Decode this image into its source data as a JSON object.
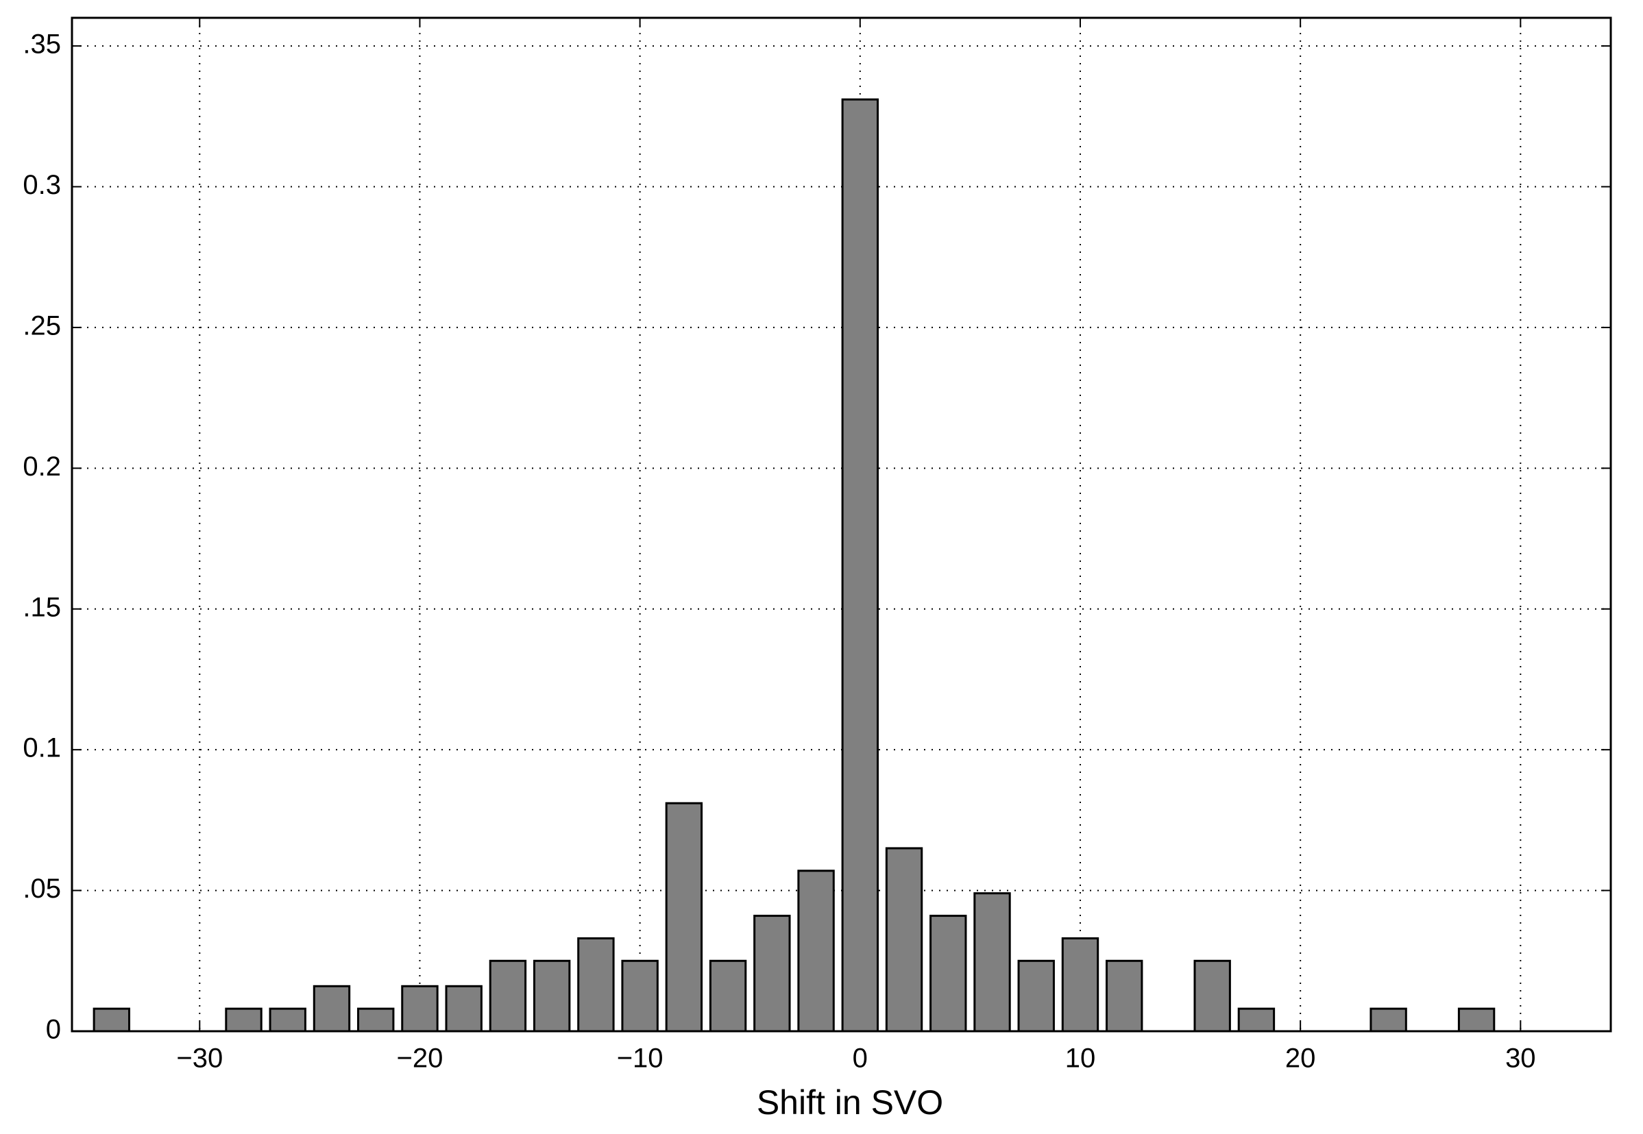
{
  "chart_data": {
    "type": "bar",
    "xlabel": "Shift in SVO",
    "x": [
      -34,
      -28,
      -26,
      -24,
      -22,
      -20,
      -18,
      -16,
      -14,
      -12,
      -10,
      -8,
      -6,
      -4,
      -2,
      0,
      2,
      4,
      6,
      8,
      10,
      12,
      16,
      18,
      24,
      28
    ],
    "values": [
      0.008,
      0.008,
      0.008,
      0.016,
      0.008,
      0.016,
      0.016,
      0.025,
      0.025,
      0.033,
      0.025,
      0.081,
      0.025,
      0.041,
      0.057,
      0.331,
      0.065,
      0.041,
      0.049,
      0.025,
      0.033,
      0.025,
      0.025,
      0.008,
      0.008,
      0.008
    ],
    "color": "#808080",
    "xlim": [
      -35.8,
      34.1
    ],
    "ylim": [
      0,
      0.36
    ],
    "xticks": [
      {
        "value": -30,
        "label": "−30"
      },
      {
        "value": -20,
        "label": "−20"
      },
      {
        "value": -10,
        "label": "−10"
      },
      0,
      10,
      20,
      30
    ],
    "yticks": [
      0,
      0.05,
      0.1,
      0.15,
      0.2,
      0.25,
      0.3,
      0.35
    ],
    "grid": true
  }
}
